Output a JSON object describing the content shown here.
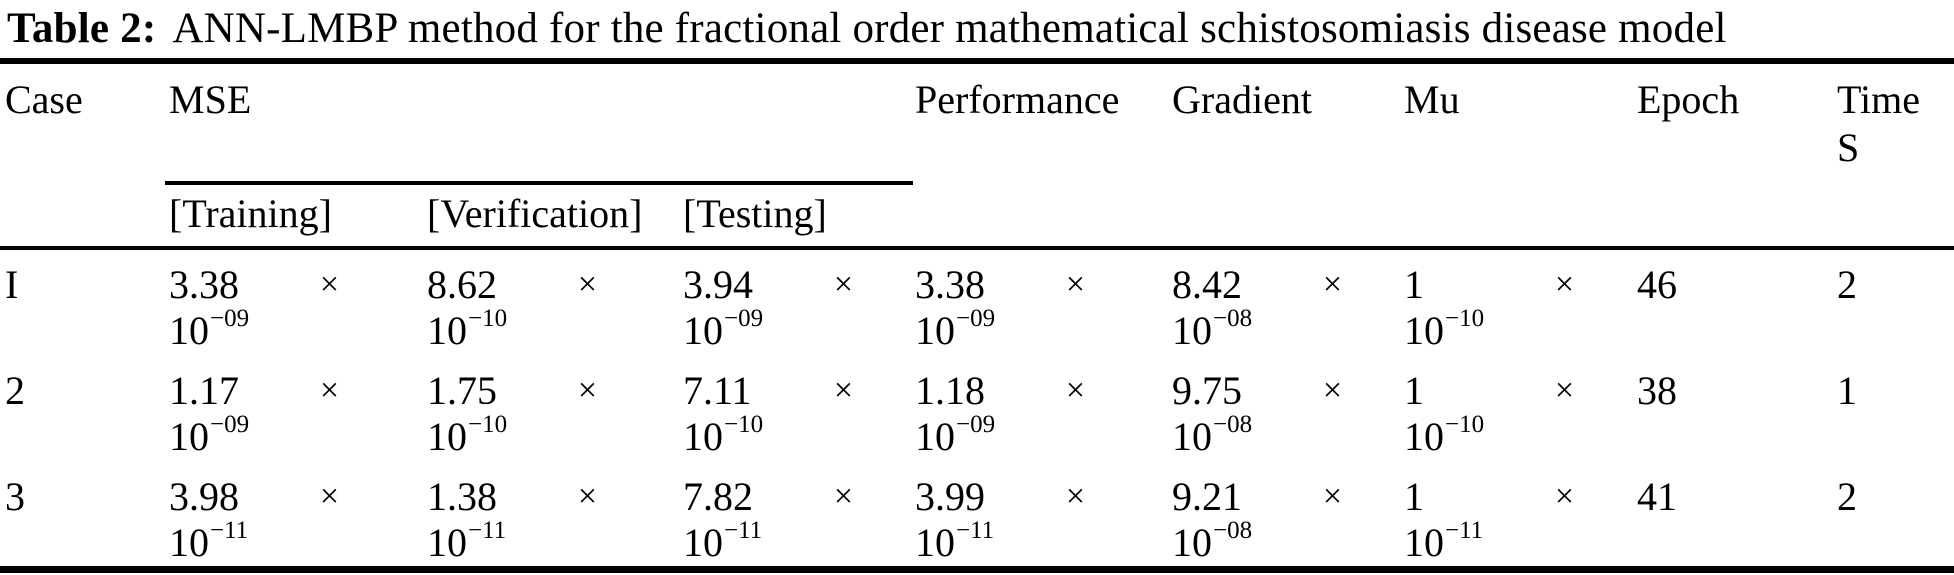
{
  "title": {
    "label": "Table 2:",
    "text": "ANN-LMBP method for the fractional order mathematical schistosomiasis disease model"
  },
  "table": {
    "multiply": "×",
    "headers": {
      "case": "Case",
      "mse": "MSE",
      "performance": "Performance",
      "gradient": "Gradient",
      "mu": "Mu",
      "epoch": "Epoch",
      "time_line1": "Time",
      "time_line2": "S"
    },
    "subheaders": {
      "training": "[Training]",
      "verification": "[Verification]",
      "testing": "[Testing]"
    },
    "rows": [
      {
        "case": "I",
        "training": {
          "m": "3.38",
          "base": "10",
          "exp": "−09"
        },
        "verification": {
          "m": "8.62",
          "base": "10",
          "exp": "−10"
        },
        "testing": {
          "m": "3.94",
          "base": "10",
          "exp": "−09"
        },
        "performance": {
          "m": "3.38",
          "base": "10",
          "exp": "−09"
        },
        "gradient": {
          "m": "8.42",
          "base": "10",
          "exp": "−08"
        },
        "mu": {
          "m": "1",
          "base": "10",
          "exp": "−10"
        },
        "epoch": "46",
        "time": "2"
      },
      {
        "case": "2",
        "training": {
          "m": "1.17",
          "base": "10",
          "exp": "−09"
        },
        "verification": {
          "m": "1.75",
          "base": "10",
          "exp": "−10"
        },
        "testing": {
          "m": "7.11",
          "base": "10",
          "exp": "−10"
        },
        "performance": {
          "m": "1.18",
          "base": "10",
          "exp": "−09"
        },
        "gradient": {
          "m": "9.75",
          "base": "10",
          "exp": "−08"
        },
        "mu": {
          "m": "1",
          "base": "10",
          "exp": "−10"
        },
        "epoch": "38",
        "time": "1"
      },
      {
        "case": "3",
        "training": {
          "m": "3.98",
          "base": "10",
          "exp": "−11"
        },
        "verification": {
          "m": "1.38",
          "base": "10",
          "exp": "−11"
        },
        "testing": {
          "m": "7.82",
          "base": "10",
          "exp": "−11"
        },
        "performance": {
          "m": "3.99",
          "base": "10",
          "exp": "−11"
        },
        "gradient": {
          "m": "9.21",
          "base": "10",
          "exp": "−08"
        },
        "mu": {
          "m": "1",
          "base": "10",
          "exp": "−11"
        },
        "epoch": "41",
        "time": "2"
      }
    ]
  },
  "colors": {
    "text": "#000000",
    "background": "#ffffff",
    "rule": "#000000"
  }
}
